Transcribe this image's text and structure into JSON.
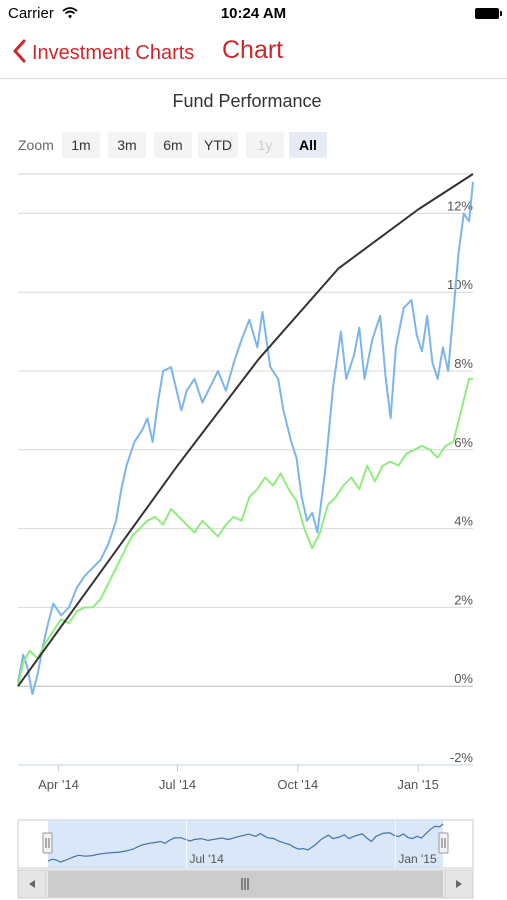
{
  "status_bar": {
    "carrier": "Carrier",
    "time": "10:24 AM"
  },
  "nav": {
    "back_label": "Investment Charts",
    "title": "Chart"
  },
  "colors": {
    "accent": "#d0262b",
    "series_blue": "#7cb5ec",
    "series_green": "#90ed7d",
    "series_black": "#333333"
  },
  "range_selector": {
    "zoom_label": "Zoom",
    "buttons": [
      {
        "label": "1m",
        "state": "normal"
      },
      {
        "label": "3m",
        "state": "normal"
      },
      {
        "label": "6m",
        "state": "normal"
      },
      {
        "label": "YTD",
        "state": "normal"
      },
      {
        "label": "1y",
        "state": "disabled"
      },
      {
        "label": "All",
        "state": "active"
      }
    ]
  },
  "chart_data": {
    "type": "line",
    "title": "Fund Performance",
    "xlabel": "",
    "ylabel": "",
    "x_range": [
      "2014-03-01",
      "2015-02-12"
    ],
    "y_range": [
      -2,
      13
    ],
    "y_ticks": [
      "-2%",
      "0%",
      "2%",
      "4%",
      "6%",
      "8%",
      "10%",
      "12%"
    ],
    "x_ticks": [
      "Apr '14",
      "Jul '14",
      "Oct '14",
      "Jan '15"
    ],
    "grid": true,
    "legend": "none",
    "series": [
      {
        "color": "#7cb5ec",
        "x": [
          "2014-03-01",
          "2014-03-05",
          "2014-03-08",
          "2014-03-12",
          "2014-03-16",
          "2014-03-20",
          "2014-03-24",
          "2014-03-28",
          "2014-04-03",
          "2014-04-09",
          "2014-04-15",
          "2014-04-21",
          "2014-04-27",
          "2014-05-03",
          "2014-05-09",
          "2014-05-15",
          "2014-05-19",
          "2014-05-23",
          "2014-05-29",
          "2014-06-04",
          "2014-06-08",
          "2014-06-12",
          "2014-06-16",
          "2014-06-20",
          "2014-06-26",
          "2014-07-04",
          "2014-07-08",
          "2014-07-14",
          "2014-07-20",
          "2014-07-26",
          "2014-08-01",
          "2014-08-07",
          "2014-08-13",
          "2014-08-19",
          "2014-08-25",
          "2014-08-31",
          "2014-09-04",
          "2014-09-10",
          "2014-09-16",
          "2014-09-20",
          "2014-09-26",
          "2014-09-30",
          "2014-10-04",
          "2014-10-08",
          "2014-10-12",
          "2014-10-16",
          "2014-10-22",
          "2014-10-28",
          "2014-11-03",
          "2014-11-07",
          "2014-11-13",
          "2014-11-17",
          "2014-11-21",
          "2014-11-27",
          "2014-12-03",
          "2014-12-07",
          "2014-12-11",
          "2014-12-15",
          "2014-12-21",
          "2014-12-27",
          "2014-12-31",
          "2015-01-04",
          "2015-01-08",
          "2015-01-12",
          "2015-01-16",
          "2015-01-20",
          "2015-01-24",
          "2015-01-28",
          "2015-02-01",
          "2015-02-05",
          "2015-02-09",
          "2015-02-12"
        ],
        "values": [
          0.1,
          0.8,
          0.5,
          -0.2,
          0.3,
          1.0,
          1.6,
          2.1,
          1.8,
          2.0,
          2.5,
          2.8,
          3.0,
          3.2,
          3.6,
          4.2,
          5.0,
          5.6,
          6.2,
          6.5,
          6.8,
          6.2,
          7.2,
          8.0,
          8.1,
          7.0,
          7.5,
          7.8,
          7.2,
          7.6,
          8.0,
          7.5,
          8.2,
          8.8,
          9.3,
          8.6,
          9.5,
          8.1,
          7.8,
          7.0,
          6.2,
          5.8,
          4.8,
          4.2,
          4.4,
          3.9,
          5.5,
          7.6,
          9.0,
          7.8,
          8.4,
          9.1,
          7.8,
          8.8,
          9.4,
          7.9,
          6.8,
          8.6,
          9.6,
          9.8,
          8.9,
          8.5,
          9.4,
          8.2,
          7.8,
          8.6,
          8.0,
          9.5,
          11.0,
          12.0,
          11.8,
          12.8
        ]
      },
      {
        "color": "#90ed7d",
        "x": [
          "2014-03-01",
          "2014-03-05",
          "2014-03-10",
          "2014-03-16",
          "2014-03-22",
          "2014-03-28",
          "2014-04-03",
          "2014-04-09",
          "2014-04-15",
          "2014-04-21",
          "2014-04-27",
          "2014-05-03",
          "2014-05-09",
          "2014-05-15",
          "2014-05-21",
          "2014-05-27",
          "2014-06-02",
          "2014-06-08",
          "2014-06-14",
          "2014-06-20",
          "2014-06-26",
          "2014-07-02",
          "2014-07-08",
          "2014-07-14",
          "2014-07-20",
          "2014-07-26",
          "2014-08-01",
          "2014-08-07",
          "2014-08-13",
          "2014-08-19",
          "2014-08-25",
          "2014-08-31",
          "2014-09-06",
          "2014-09-12",
          "2014-09-18",
          "2014-09-24",
          "2014-09-30",
          "2014-10-06",
          "2014-10-12",
          "2014-10-18",
          "2014-10-24",
          "2014-10-30",
          "2014-11-05",
          "2014-11-11",
          "2014-11-17",
          "2014-11-23",
          "2014-11-29",
          "2014-12-05",
          "2014-12-11",
          "2014-12-17",
          "2014-12-23",
          "2014-12-29",
          "2015-01-04",
          "2015-01-10",
          "2015-01-16",
          "2015-01-22",
          "2015-01-28",
          "2015-02-03",
          "2015-02-09",
          "2015-02-12"
        ],
        "values": [
          0.0,
          0.6,
          0.9,
          0.7,
          1.1,
          1.4,
          1.7,
          1.6,
          1.9,
          2.0,
          2.0,
          2.2,
          2.6,
          3.0,
          3.4,
          3.8,
          4.0,
          4.2,
          4.3,
          4.1,
          4.5,
          4.3,
          4.1,
          3.9,
          4.2,
          4.0,
          3.8,
          4.1,
          4.3,
          4.2,
          4.8,
          5.0,
          5.3,
          5.1,
          5.4,
          5.0,
          4.7,
          4.0,
          3.5,
          3.9,
          4.6,
          4.8,
          5.1,
          5.3,
          5.0,
          5.6,
          5.2,
          5.6,
          5.7,
          5.6,
          5.9,
          6.0,
          6.1,
          6.0,
          5.8,
          6.1,
          6.2,
          7.0,
          7.8,
          7.8
        ]
      },
      {
        "color": "#333333",
        "x": [
          "2014-03-01",
          "2014-05-01",
          "2014-07-01",
          "2014-09-01",
          "2014-11-01",
          "2015-01-01",
          "2015-02-12"
        ],
        "values": [
          0.0,
          2.8,
          5.6,
          8.3,
          10.6,
          12.1,
          13.0
        ]
      }
    ]
  },
  "navigator": {
    "x_ticks": [
      "Jul '14",
      "Jan '15"
    ]
  }
}
